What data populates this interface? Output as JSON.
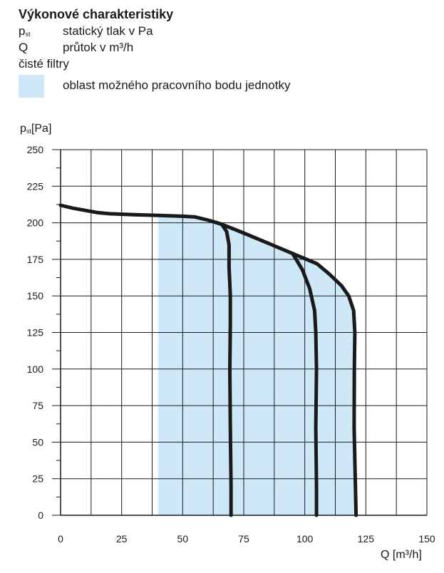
{
  "legend": {
    "title": "Výkonové charakteristiky",
    "items": [
      {
        "symbol": "p",
        "symbol_sub": "st",
        "text": "statický tlak v Pa"
      },
      {
        "symbol": "Q",
        "symbol_sub": "",
        "text": "průtok v m³/h"
      }
    ],
    "note": "čisté filtry",
    "area_label": "oblast možného pracovního bodu jednotky",
    "area_color": "#cfe8f8"
  },
  "chart_data": {
    "type": "line",
    "title": "Výkonové charakteristiky",
    "ylabel_main": "p",
    "ylabel_sub": "st",
    "ylabel_unit": "[Pa]",
    "xlabel": "Q [m³/h]",
    "xlim": [
      0,
      150
    ],
    "ylim": [
      0,
      250
    ],
    "x_ticks": [
      0,
      25,
      50,
      75,
      100,
      125,
      150
    ],
    "y_ticks": [
      0,
      25,
      50,
      75,
      100,
      125,
      150,
      175,
      200,
      225,
      250
    ],
    "grid": true,
    "line_color": "#1a1a1a",
    "area_color": "#cfe8f8",
    "operating_area": {
      "x_min": 40,
      "upper_boundary": [
        [
          40,
          205
        ],
        [
          50,
          204.5
        ],
        [
          55,
          204
        ],
        [
          60,
          202
        ],
        [
          62,
          201
        ],
        [
          66,
          199
        ],
        [
          75,
          193
        ],
        [
          85,
          186
        ],
        [
          95,
          179
        ],
        [
          105,
          172
        ],
        [
          110,
          165
        ],
        [
          115,
          157
        ],
        [
          118,
          150
        ],
        [
          120,
          140
        ],
        [
          120.5,
          125
        ],
        [
          120.3,
          100
        ],
        [
          120.2,
          60
        ],
        [
          121,
          0
        ]
      ]
    },
    "series": [
      {
        "values": [
          [
            0,
            212
          ],
          [
            5,
            210
          ],
          [
            10,
            208.5
          ],
          [
            15,
            207
          ],
          [
            20,
            206.2
          ],
          [
            30,
            205.5
          ],
          [
            40,
            205
          ],
          [
            50,
            204.5
          ],
          [
            55,
            204
          ],
          [
            60,
            202
          ],
          [
            62,
            201
          ],
          [
            66,
            199
          ],
          [
            75,
            193
          ],
          [
            85,
            186
          ],
          [
            95,
            179
          ],
          [
            105,
            172
          ],
          [
            110,
            165
          ],
          [
            115,
            157
          ],
          [
            118,
            150
          ],
          [
            120,
            140
          ],
          [
            120.5,
            125
          ],
          [
            120.3,
            100
          ],
          [
            120.2,
            60
          ],
          [
            121,
            0
          ]
        ]
      },
      {
        "values": [
          [
            62,
            201
          ],
          [
            66,
            199
          ],
          [
            68,
            194
          ],
          [
            69,
            185
          ],
          [
            69,
            170
          ],
          [
            69.5,
            150
          ],
          [
            69.5,
            130
          ],
          [
            69.3,
            100
          ],
          [
            69.5,
            60
          ],
          [
            69.8,
            20
          ],
          [
            69.8,
            0
          ]
        ]
      },
      {
        "values": [
          [
            95,
            179
          ],
          [
            99,
            168
          ],
          [
            102,
            155
          ],
          [
            104,
            140
          ],
          [
            104.5,
            125
          ],
          [
            104.8,
            100
          ],
          [
            104.5,
            60
          ],
          [
            104.8,
            20
          ],
          [
            104.8,
            0
          ]
        ]
      }
    ]
  }
}
